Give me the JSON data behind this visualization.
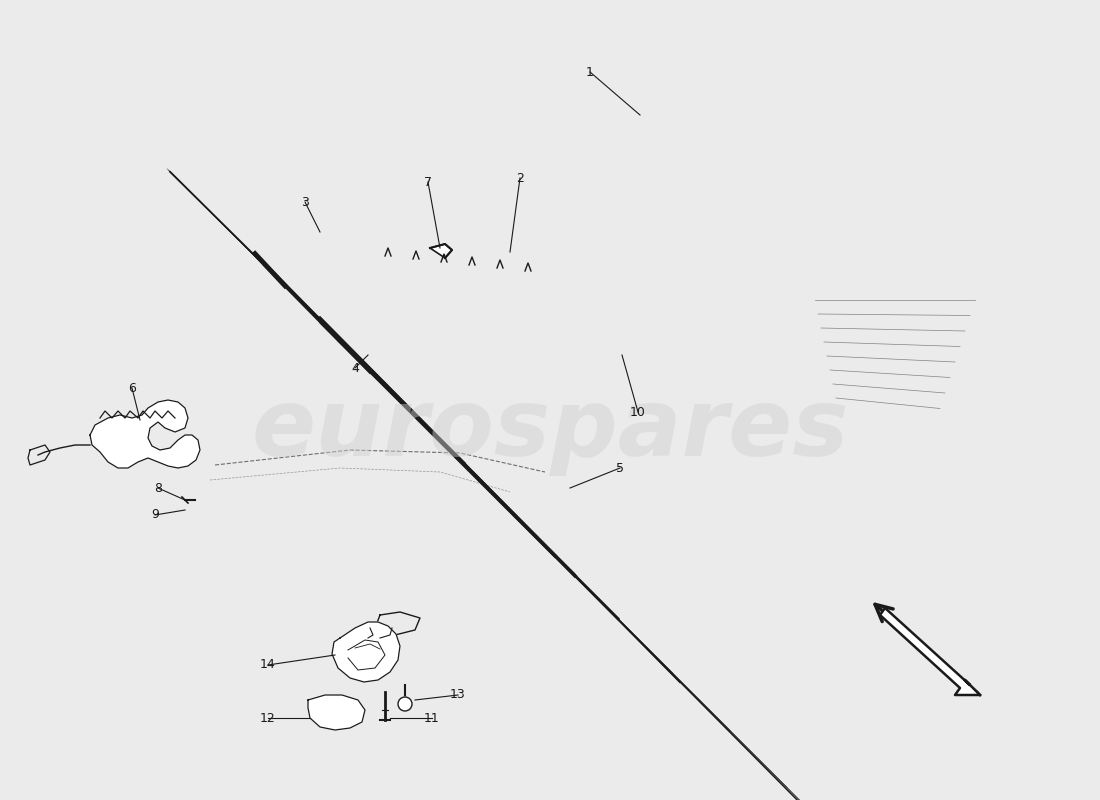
{
  "bg_color": "#ebebeb",
  "line_color": "#1a1a1a",
  "watermark_text": "eurospares",
  "watermark_color": "#d0d0d0",
  "fig_width": 11.0,
  "fig_height": 8.0,
  "dpi": 100
}
